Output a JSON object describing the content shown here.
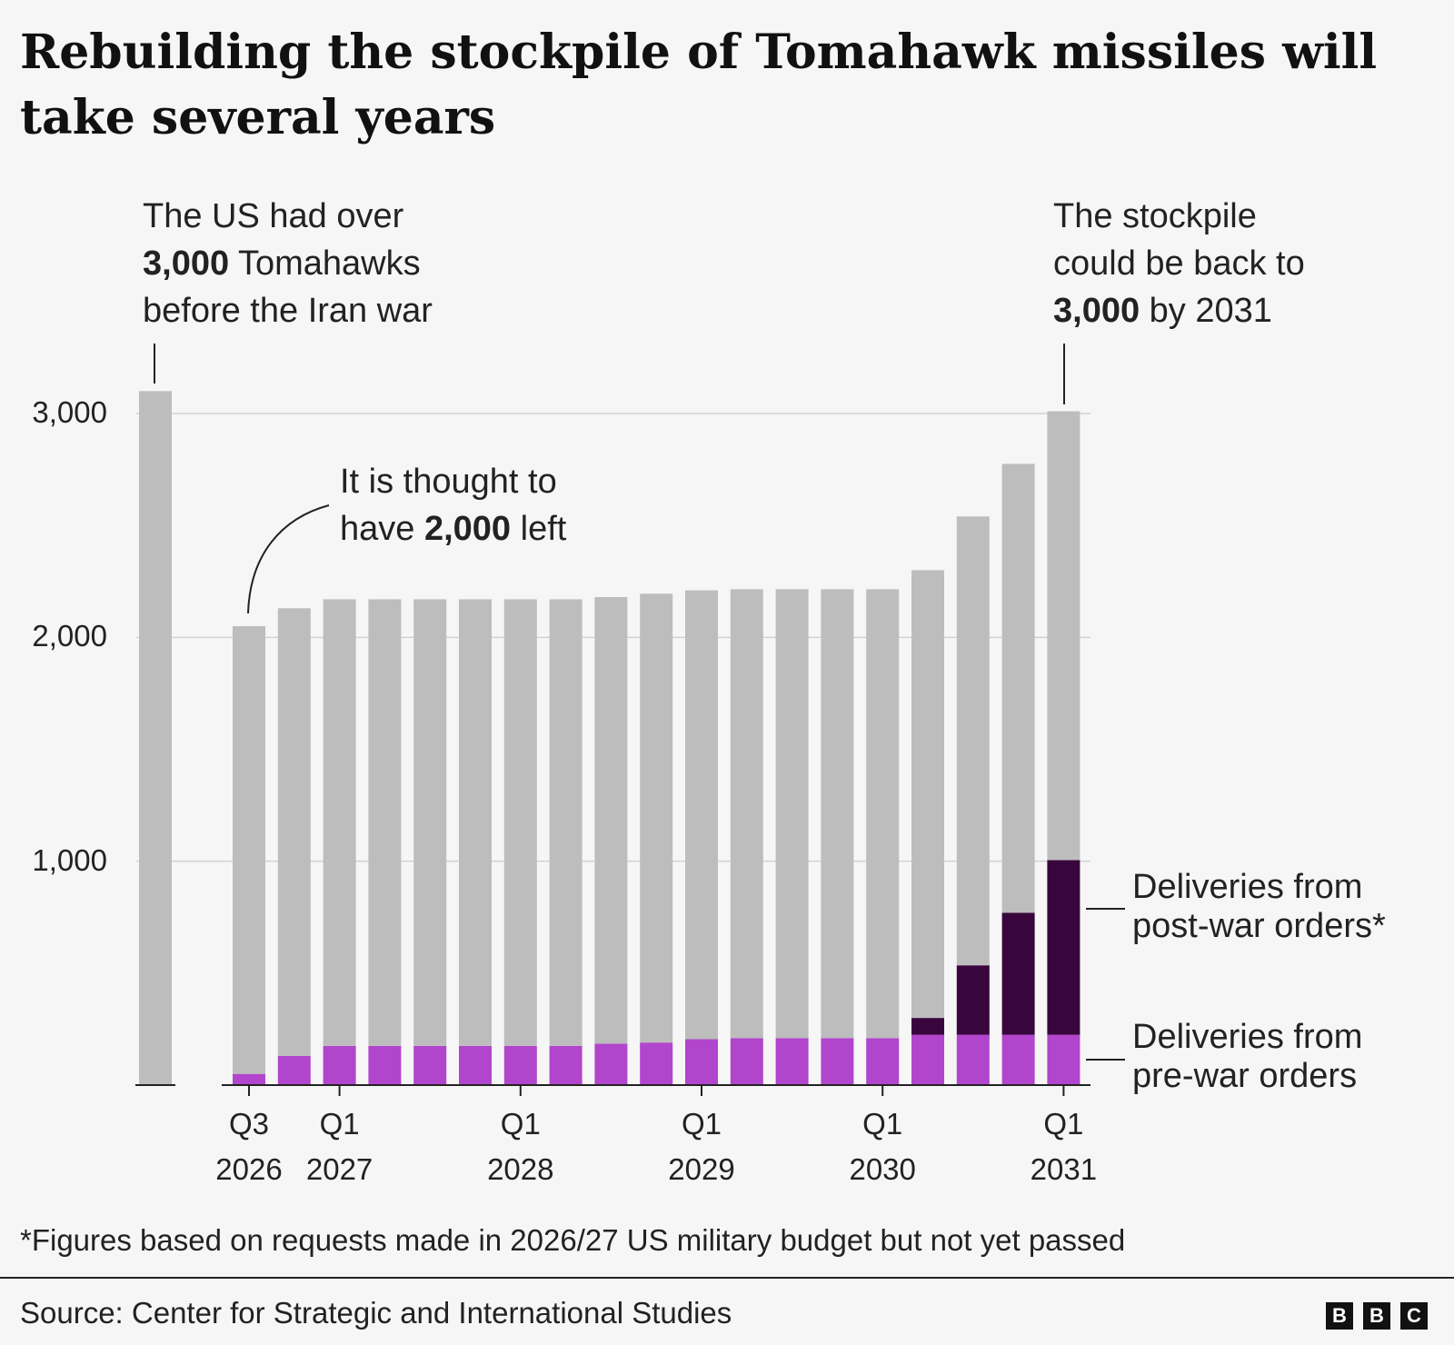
{
  "chart_data": {
    "type": "stacked-bar",
    "title": "Rebuilding the stockpile of Tomahawk missiles will take several years",
    "categories": [
      null,
      "Q3\n2026",
      null,
      "Q1\n2027",
      null,
      null,
      null,
      "Q1\n2028",
      null,
      null,
      null,
      "Q1\n2029",
      null,
      null,
      null,
      "Q1\n2030",
      null,
      null,
      null,
      "Q1\n2031"
    ],
    "series": [
      {
        "name": "Deliveries from\npre-war orders",
        "color": "#b145cc",
        "values": [
          0,
          50,
          130,
          175,
          175,
          175,
          175,
          175,
          175,
          185,
          190,
          205,
          210,
          210,
          210,
          210,
          225,
          225,
          225,
          225
        ]
      },
      {
        "name": "Deliveries from\npost-war orders*",
        "color": "#38063c",
        "values": [
          0,
          0,
          0,
          0,
          0,
          0,
          0,
          0,
          0,
          0,
          0,
          0,
          0,
          0,
          0,
          0,
          75,
          310,
          545,
          780
        ]
      },
      {
        "color": "#bdbdbd",
        "values": [
          3100,
          2000,
          2000,
          1995,
          1995,
          1995,
          1995,
          1995,
          1995,
          1995,
          2005,
          2005,
          2005,
          2005,
          2005,
          2005,
          2000,
          2005,
          2005,
          2005
        ]
      }
    ],
    "ylim": [
      0,
      3000
    ],
    "yticks": [
      {
        "value": 1000,
        "label": "1,000"
      },
      {
        "value": 2000,
        "label": "2,000"
      },
      {
        "value": 3000,
        "label": "3,000"
      }
    ],
    "grid": true,
    "annotations": [
      [
        "The US had over\n",
        "3,000",
        " Tomahawks\nbefore the Iran war"
      ],
      [
        "It is thought to\nhave ",
        "2,000",
        " left"
      ],
      [
        "The stockpile\ncould be back to\n",
        "3,000",
        " by 2031"
      ]
    ],
    "footnote": "*Figures based on requests made in 2026/27 US military budget but not yet passed",
    "source": "Source: Center for Strategic and International Studies"
  }
}
